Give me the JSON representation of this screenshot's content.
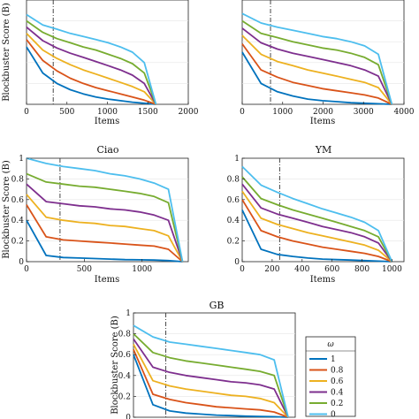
{
  "colors": [
    "#0072BD",
    "#D95319",
    "#EDB120",
    "#7E2F8E",
    "#77AC30",
    "#4DBEEE"
  ],
  "chart_data": [
    {
      "id": "panel1",
      "type": "line",
      "title": "",
      "xlabel": "Items",
      "ylabel": "Blockbuster Score (B)",
      "xlim": [
        0,
        2000
      ],
      "ylim": [
        0,
        1
      ],
      "xticks": [
        "0",
        "500",
        "1000",
        "1500",
        "2000"
      ],
      "yticks": [],
      "n_items": 1600,
      "vline": 330,
      "series": [
        {
          "values": [
            0.55,
            0.3,
            0.2,
            0.14,
            0.1,
            0.07,
            0.05,
            0.035,
            0.02,
            0.01,
            0
          ]
        },
        {
          "values": [
            0.62,
            0.42,
            0.32,
            0.25,
            0.2,
            0.16,
            0.13,
            0.1,
            0.07,
            0.04,
            0
          ]
        },
        {
          "values": [
            0.68,
            0.52,
            0.44,
            0.38,
            0.33,
            0.29,
            0.25,
            0.21,
            0.17,
            0.12,
            0
          ]
        },
        {
          "values": [
            0.74,
            0.61,
            0.54,
            0.49,
            0.45,
            0.41,
            0.37,
            0.33,
            0.28,
            0.2,
            0
          ]
        },
        {
          "values": [
            0.8,
            0.69,
            0.63,
            0.59,
            0.55,
            0.52,
            0.48,
            0.44,
            0.39,
            0.3,
            0
          ]
        },
        {
          "values": [
            0.86,
            0.76,
            0.72,
            0.68,
            0.65,
            0.62,
            0.59,
            0.55,
            0.5,
            0.4,
            0
          ]
        }
      ]
    },
    {
      "id": "panel2",
      "type": "line",
      "title": "",
      "xlabel": "Items",
      "ylabel": "",
      "xlim": [
        0,
        4000
      ],
      "ylim": [
        0,
        1
      ],
      "xticks": [
        "0",
        "1000",
        "2000",
        "3000",
        "4000"
      ],
      "yticks": [],
      "n_items": 3700,
      "vline": 700,
      "series": [
        {
          "values": [
            0.5,
            0.2,
            0.12,
            0.08,
            0.05,
            0.035,
            0.025,
            0.015,
            0.01,
            0.005,
            0
          ]
        },
        {
          "values": [
            0.58,
            0.33,
            0.26,
            0.21,
            0.18,
            0.15,
            0.13,
            0.11,
            0.09,
            0.06,
            0
          ]
        },
        {
          "values": [
            0.66,
            0.48,
            0.41,
            0.37,
            0.33,
            0.3,
            0.27,
            0.24,
            0.21,
            0.16,
            0
          ]
        },
        {
          "values": [
            0.73,
            0.59,
            0.53,
            0.49,
            0.46,
            0.43,
            0.4,
            0.37,
            0.33,
            0.27,
            0
          ]
        },
        {
          "values": [
            0.8,
            0.68,
            0.64,
            0.6,
            0.57,
            0.54,
            0.52,
            0.49,
            0.45,
            0.38,
            0
          ]
        },
        {
          "values": [
            0.87,
            0.78,
            0.74,
            0.71,
            0.68,
            0.65,
            0.63,
            0.6,
            0.56,
            0.48,
            0
          ]
        }
      ]
    },
    {
      "id": "ciao",
      "type": "line",
      "title": "Ciao",
      "xlabel": "Items",
      "ylabel": "Blockbuster Score (B)",
      "xlim": [
        0,
        1400
      ],
      "ylim": [
        0,
        1
      ],
      "xticks": [
        "0",
        "500",
        "1000"
      ],
      "xtick_values": [
        0,
        500,
        1000
      ],
      "yticks": [
        "0",
        "0.2",
        "0.4",
        "0.6",
        "0.8",
        "1"
      ],
      "n_items": 1350,
      "vline": 290,
      "series": [
        {
          "values": [
            0.4,
            0.06,
            0.04,
            0.035,
            0.03,
            0.025,
            0.02,
            0.018,
            0.015,
            0.01,
            0
          ]
        },
        {
          "values": [
            0.55,
            0.24,
            0.21,
            0.2,
            0.19,
            0.18,
            0.17,
            0.16,
            0.15,
            0.12,
            0
          ]
        },
        {
          "values": [
            0.65,
            0.43,
            0.4,
            0.38,
            0.37,
            0.35,
            0.34,
            0.32,
            0.3,
            0.25,
            0
          ]
        },
        {
          "values": [
            0.75,
            0.58,
            0.56,
            0.54,
            0.53,
            0.51,
            0.5,
            0.48,
            0.45,
            0.4,
            0
          ]
        },
        {
          "values": [
            0.85,
            0.77,
            0.75,
            0.73,
            0.72,
            0.7,
            0.68,
            0.66,
            0.63,
            0.57,
            0
          ]
        },
        {
          "values": [
            1.0,
            0.95,
            0.92,
            0.9,
            0.88,
            0.85,
            0.83,
            0.8,
            0.76,
            0.7,
            0
          ]
        }
      ]
    },
    {
      "id": "ym",
      "type": "line",
      "title": "YM",
      "xlabel": "Items",
      "ylabel": "",
      "xlim": [
        0,
        1080
      ],
      "ylim": [
        0,
        1
      ],
      "xticks": [
        "0",
        "200",
        "400",
        "600",
        "800",
        "1000"
      ],
      "xtick_values": [
        0,
        200,
        400,
        600,
        800,
        1000
      ],
      "yticks": [
        "0",
        "0.2",
        "0.4",
        "0.6",
        "0.8",
        "1"
      ],
      "n_items": 1000,
      "vline": 250,
      "series": [
        {
          "values": [
            0.5,
            0.12,
            0.07,
            0.05,
            0.035,
            0.025,
            0.02,
            0.015,
            0.01,
            0.005,
            0
          ]
        },
        {
          "values": [
            0.6,
            0.3,
            0.24,
            0.2,
            0.17,
            0.14,
            0.12,
            0.1,
            0.08,
            0.05,
            0
          ]
        },
        {
          "values": [
            0.68,
            0.42,
            0.36,
            0.32,
            0.28,
            0.25,
            0.22,
            0.19,
            0.16,
            0.11,
            0
          ]
        },
        {
          "values": [
            0.75,
            0.52,
            0.46,
            0.42,
            0.38,
            0.34,
            0.31,
            0.28,
            0.24,
            0.18,
            0
          ]
        },
        {
          "values": [
            0.82,
            0.61,
            0.55,
            0.5,
            0.46,
            0.42,
            0.38,
            0.34,
            0.3,
            0.24,
            0
          ]
        },
        {
          "values": [
            0.92,
            0.74,
            0.67,
            0.61,
            0.56,
            0.51,
            0.47,
            0.43,
            0.38,
            0.3,
            0
          ]
        }
      ]
    },
    {
      "id": "gb",
      "type": "line",
      "title": "GB",
      "xlabel": "",
      "ylabel": "Blockbuster Score (B)",
      "xlim": [
        0,
        1150
      ],
      "ylim": [
        0,
        1
      ],
      "xticks": [],
      "yticks": [
        "0",
        "0.2",
        "0.4",
        "0.6",
        "0.8",
        "1"
      ],
      "n_items": 1100,
      "vline": 230,
      "series": [
        {
          "values": [
            0.6,
            0.12,
            0.06,
            0.04,
            0.03,
            0.02,
            0.015,
            0.01,
            0.008,
            0.005,
            0
          ]
        },
        {
          "values": [
            0.65,
            0.22,
            0.17,
            0.14,
            0.12,
            0.1,
            0.09,
            0.08,
            0.07,
            0.05,
            0
          ]
        },
        {
          "values": [
            0.7,
            0.35,
            0.3,
            0.27,
            0.25,
            0.23,
            0.21,
            0.2,
            0.18,
            0.14,
            0
          ]
        },
        {
          "values": [
            0.75,
            0.48,
            0.43,
            0.4,
            0.38,
            0.36,
            0.34,
            0.33,
            0.31,
            0.27,
            0
          ]
        },
        {
          "values": [
            0.8,
            0.62,
            0.57,
            0.54,
            0.52,
            0.5,
            0.48,
            0.46,
            0.44,
            0.4,
            0
          ]
        },
        {
          "values": [
            0.88,
            0.77,
            0.72,
            0.7,
            0.68,
            0.66,
            0.64,
            0.62,
            0.6,
            0.55,
            0
          ]
        }
      ]
    }
  ],
  "legend": {
    "title": "ω",
    "labels": [
      "1",
      "0.8",
      "0.6",
      "0.4",
      "0.2",
      "0"
    ]
  }
}
